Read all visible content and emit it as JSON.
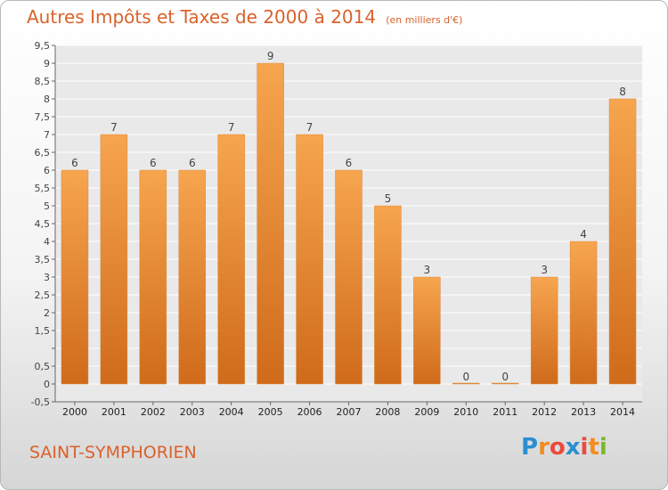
{
  "title": {
    "main": "Autres Impôts et Taxes de 2000 à 2014",
    "unit": "(en milliers d'€)"
  },
  "commune": "SAINT-SYMPHORIEN",
  "logo": {
    "letters": [
      "P",
      "r",
      "o",
      "x",
      "i",
      "t",
      "i"
    ],
    "colors": [
      "#2a8fd0",
      "#f28c1e",
      "#e94b3c",
      "#2a8fd0",
      "#e94b3c",
      "#f28c1e",
      "#7ab829"
    ]
  },
  "colors": {
    "bar_light": "#f7a54f",
    "bar_dark": "#cf6b1b",
    "title": "#d9622b"
  },
  "chart_data": {
    "type": "bar",
    "title": "Autres Impôts et Taxes de 2000 à 2014",
    "subtitle": "(en milliers d'€)",
    "xlabel": "",
    "ylabel": "",
    "categories": [
      "2000",
      "2001",
      "2002",
      "2003",
      "2004",
      "2005",
      "2006",
      "2007",
      "2008",
      "2009",
      "2010",
      "2011",
      "2012",
      "2013",
      "2014"
    ],
    "values": [
      6,
      7,
      6,
      6,
      7,
      9,
      7,
      6,
      5,
      3,
      0,
      0,
      3,
      4,
      8
    ],
    "value_labels": [
      "6",
      "7",
      "6",
      "6",
      "7",
      "9",
      "7",
      "6",
      "5",
      "3",
      "0",
      "0",
      "3",
      "4",
      "8"
    ],
    "ylim": [
      -0.5,
      9.5
    ],
    "yticks": [
      -0.5,
      0,
      0.5,
      1,
      1.5,
      2,
      2.5,
      3,
      3.5,
      4,
      4.5,
      5,
      5.5,
      6,
      6.5,
      7,
      7.5,
      8,
      8.5,
      9,
      9.5
    ],
    "ytick_labels": [
      "-0,5",
      "0",
      "0,5",
      "",
      "1,5",
      "2",
      "2,5",
      "3",
      "3,5",
      "4",
      "4,5",
      "5",
      "5,5",
      "6",
      "6,5",
      "7",
      "7,5",
      "8",
      "8,5",
      "9",
      "9,5"
    ],
    "grid": true,
    "legend": "none"
  }
}
